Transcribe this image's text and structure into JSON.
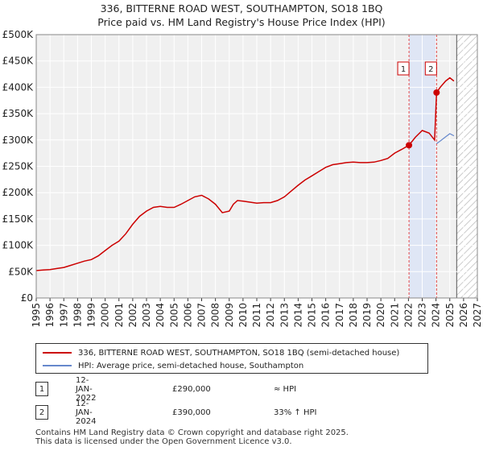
{
  "title_line1": "336, BITTERNE ROAD WEST, SOUTHAMPTON, SO18 1BQ",
  "title_line2": "Price paid vs. HM Land Registry's House Price Index (HPI)",
  "chart_data": {
    "type": "line",
    "ylim": [
      0,
      500000
    ],
    "xlim": [
      1995,
      2027
    ],
    "yticks": [
      0,
      50000,
      100000,
      150000,
      200000,
      250000,
      300000,
      350000,
      400000,
      450000,
      500000
    ],
    "ytick_labels": [
      "£0",
      "£50K",
      "£100K",
      "£150K",
      "£200K",
      "£250K",
      "£300K",
      "£350K",
      "£400K",
      "£450K",
      "£500K"
    ],
    "xticks": [
      "1995",
      "1996",
      "1997",
      "1998",
      "1999",
      "2000",
      "2001",
      "2002",
      "2003",
      "2004",
      "2005",
      "2006",
      "2007",
      "2008",
      "2009",
      "2010",
      "2011",
      "2012",
      "2013",
      "2014",
      "2015",
      "2016",
      "2017",
      "2018",
      "2019",
      "2020",
      "2021",
      "2022",
      "2023",
      "2024",
      "2025",
      "2026",
      "2027"
    ],
    "grid": true,
    "shaded_region": [
      2022.04,
      2024.04
    ],
    "hatched_future_from": 2025.5,
    "series": [
      {
        "name": "336, BITTERNE ROAD WEST, SOUTHAMPTON, SO18 1BQ (semi-detached house)",
        "color": "#cc0000",
        "x": [
          1995.0,
          1995.5,
          1996.0,
          1996.5,
          1997.0,
          1997.5,
          1998.0,
          1998.5,
          1999.0,
          1999.5,
          2000.0,
          2000.5,
          2001.0,
          2001.5,
          2002.0,
          2002.5,
          2003.0,
          2003.5,
          2004.0,
          2004.5,
          2005.0,
          2005.5,
          2006.0,
          2006.5,
          2007.0,
          2007.5,
          2008.0,
          2008.5,
          2009.0,
          2009.3,
          2009.6,
          2010.0,
          2010.5,
          2011.0,
          2011.5,
          2012.0,
          2012.5,
          2013.0,
          2013.5,
          2014.0,
          2014.5,
          2015.0,
          2015.5,
          2016.0,
          2016.5,
          2017.0,
          2017.5,
          2018.0,
          2018.5,
          2019.0,
          2019.5,
          2020.0,
          2020.5,
          2021.0,
          2021.5,
          2022.04,
          2022.5,
          2023.0,
          2023.5,
          2023.9,
          2024.04,
          2024.3,
          2024.7,
          2025.0,
          2025.3
        ],
        "y": [
          52000,
          53000,
          54000,
          56000,
          58000,
          62000,
          66000,
          70000,
          73000,
          80000,
          90000,
          100000,
          108000,
          122000,
          140000,
          155000,
          165000,
          172000,
          174000,
          172000,
          172000,
          178000,
          185000,
          192000,
          195000,
          188000,
          178000,
          162000,
          165000,
          178000,
          185000,
          184000,
          182000,
          180000,
          181000,
          181000,
          185000,
          192000,
          203000,
          214000,
          224000,
          232000,
          240000,
          248000,
          253000,
          255000,
          257000,
          258000,
          257000,
          257000,
          258000,
          261000,
          265000,
          275000,
          282000,
          290000,
          305000,
          318000,
          313000,
          300000,
          390000,
          400000,
          412000,
          418000,
          412000
        ]
      },
      {
        "name": "HPI: Average price, semi-detached house, Southampton",
        "color": "#6688cc",
        "x": [
          2024.04,
          2024.3,
          2024.7,
          2025.0,
          2025.3
        ],
        "y": [
          293000,
          298000,
          306000,
          312000,
          308000
        ]
      }
    ],
    "annotations": [
      {
        "label": "1",
        "x": 2022.04,
        "y": 290000
      },
      {
        "label": "2",
        "x": 2024.04,
        "y": 390000
      }
    ]
  },
  "legend": {
    "items": [
      {
        "label": "336, BITTERNE ROAD WEST, SOUTHAMPTON, SO18 1BQ (semi-detached house)",
        "color": "#cc0000"
      },
      {
        "label": "HPI: Average price, semi-detached house, Southampton",
        "color": "#6688cc"
      }
    ]
  },
  "transactions": [
    {
      "num": "1",
      "date": "12-JAN-2022",
      "price": "£290,000",
      "hpi": "≈ HPI"
    },
    {
      "num": "2",
      "date": "12-JAN-2024",
      "price": "£390,000",
      "hpi": "33% ↑ HPI"
    }
  ],
  "footer_line1": "Contains HM Land Registry data © Crown copyright and database right 2025.",
  "footer_line2": "This data is licensed under the Open Government Licence v3.0."
}
